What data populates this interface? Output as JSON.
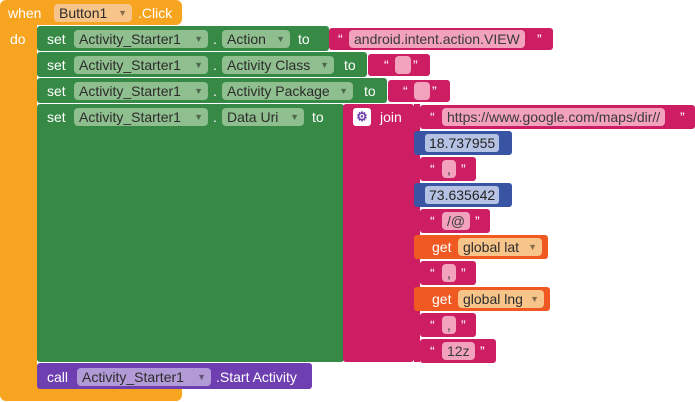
{
  "event": {
    "when_label": "when",
    "component": "Button1",
    "event_name": ".Click",
    "do_label": "do"
  },
  "keywords": {
    "set": "set",
    "to": "to",
    "dot": ".",
    "join": "join",
    "get": "get",
    "call": "call",
    "open_quote": "“",
    "close_quote": "”"
  },
  "statements": [
    {
      "component": "Activity_Starter1",
      "property": "Action",
      "value": "android.intent.action.VIEW"
    },
    {
      "component": "Activity_Starter1",
      "property": "Activity Class",
      "value": ""
    },
    {
      "component": "Activity_Starter1",
      "property": "Activity Package",
      "value": ""
    },
    {
      "component": "Activity_Starter1",
      "property": "Data Uri"
    }
  ],
  "join_items": {
    "url": "https://www.google.com/maps/dir//",
    "lat_number": "18.737955",
    "comma1": ",",
    "lng_number": "73.635642",
    "at": "/@",
    "var_lat": "global lat",
    "comma2": ",",
    "var_lng": "global lng",
    "comma3": ",",
    "zoom": "12z"
  },
  "call_block": {
    "component": "Activity_Starter1",
    "method": ".Start Activity"
  },
  "colors": {
    "event": "#f7a421",
    "setter": "#378a46",
    "text": "#cd1e63",
    "math": "#3854a3",
    "variable": "#f05a22",
    "component_call": "#6e3fb0"
  }
}
